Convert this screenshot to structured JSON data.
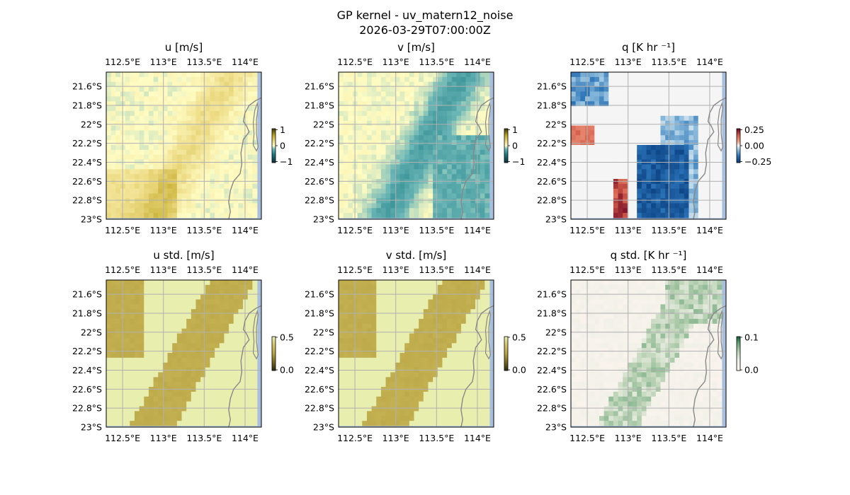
{
  "title_line1": "GP kernel - uv_matern12_noise",
  "title_line2": "2026-03-29T07:00:00Z",
  "lon_ticks": [
    "112.5°E",
    "113°E",
    "113.5°E",
    "114°E"
  ],
  "lat_ticks": [
    "21.6°S",
    "21.8°S",
    "22°S",
    "22.2°S",
    "22.4°S",
    "22.6°S",
    "22.8°S",
    "23°S"
  ],
  "panels": [
    {
      "title": "u [m/s]",
      "cmap": "yellow-teal",
      "cbar_ticks": [
        "1",
        "0",
        "−1"
      ]
    },
    {
      "title": "v [m/s]",
      "cmap": "yellow-teal",
      "cbar_ticks": [
        "1",
        "0",
        "−1"
      ]
    },
    {
      "title": "q [K hr ⁻¹]",
      "cmap": "blue-red",
      "cbar_ticks": [
        "0.25",
        "0.00",
        "−0.25"
      ]
    },
    {
      "title": "u std. [m/s]",
      "cmap": "olive-cream",
      "cbar_ticks": [
        "0.5",
        "0.0"
      ]
    },
    {
      "title": "v std. [m/s]",
      "cmap": "olive-cream",
      "cbar_ticks": [
        "0.5",
        "0.0"
      ]
    },
    {
      "title": "q std. [K hr ⁻¹]",
      "cmap": "pink-green",
      "cbar_ticks": [
        "0.1",
        "0.0"
      ]
    }
  ],
  "chart_data": {
    "type": "heatmap",
    "xlim": [
      112.3,
      114.2
    ],
    "ylim": [
      -23.0,
      -21.45
    ],
    "grid": true,
    "colors": {
      "ocean": "#a9bfe0",
      "coast": "#888888",
      "grid": "#b0b0b0"
    }
  }
}
